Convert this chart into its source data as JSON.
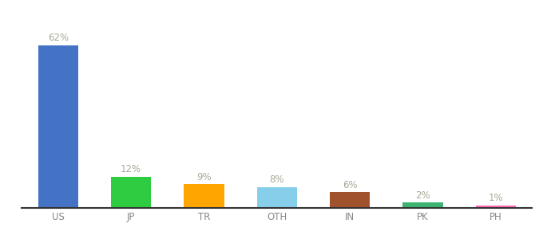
{
  "categories": [
    "US",
    "JP",
    "TR",
    "OTH",
    "IN",
    "PK",
    "PH"
  ],
  "values": [
    62,
    12,
    9,
    8,
    6,
    2,
    1
  ],
  "colors": [
    "#4472C4",
    "#2ECC40",
    "#FFA500",
    "#87CEEB",
    "#A0522D",
    "#3CB371",
    "#FF69B4"
  ],
  "labels": [
    "62%",
    "12%",
    "9%",
    "8%",
    "6%",
    "2%",
    "1%"
  ],
  "ylim": [
    0,
    72
  ],
  "background_color": "#ffffff",
  "label_fontsize": 8.5,
  "tick_fontsize": 8.5,
  "label_color": "#aaa89a",
  "tick_color": "#888888",
  "bar_width": 0.55
}
